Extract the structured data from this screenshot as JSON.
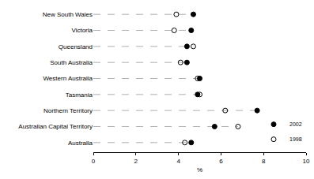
{
  "chart_data": {
    "type": "dot",
    "orientation": "horizontal",
    "categories": [
      "New South Wales",
      "Victoria",
      "Queensland",
      "South Australia",
      "Western Australia",
      "Tasmania",
      "Northern Territory",
      "Australian Capital Territory",
      "Australia"
    ],
    "series": [
      {
        "name": "2002",
        "color": "#000000",
        "marker": "circle",
        "values": [
          4.7,
          4.6,
          4.4,
          4.4,
          5.0,
          4.9,
          7.7,
          5.7,
          4.6
        ]
      },
      {
        "name": "1998",
        "color": "#000000",
        "marker": "circle-open",
        "values": [
          3.9,
          3.8,
          4.7,
          4.1,
          4.9,
          5.0,
          6.2,
          6.8,
          4.3
        ]
      }
    ],
    "x_label": "%",
    "xlim": [
      0,
      10
    ],
    "xticks": [
      0,
      2,
      4,
      6,
      8,
      10
    ],
    "grid": false,
    "legend": "bottom right",
    "line_style": "dashed"
  }
}
